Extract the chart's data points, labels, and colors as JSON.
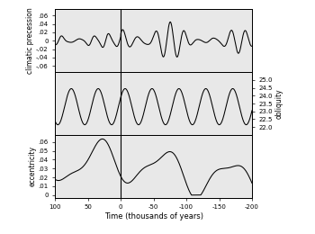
{
  "xlabel": "Time (thousands of years)",
  "panel1_ylabel": "climatic precession",
  "panel2_ylabel_right": "obliquity",
  "panel3_ylabel": "eccentricity",
  "panel1_ytick_labels": [
    ".06",
    ".04",
    ".02",
    "0",
    "-.02",
    "-.04",
    "-.06"
  ],
  "panel1_yticks": [
    0.06,
    0.04,
    0.02,
    0.0,
    -0.02,
    -0.04,
    -0.06
  ],
  "panel1_ylim": [
    -0.075,
    0.075
  ],
  "panel2_yticks": [
    22.0,
    22.5,
    23.0,
    23.5,
    24.0,
    24.5,
    25.0
  ],
  "panel2_ylim": [
    21.5,
    25.5
  ],
  "panel3_yticks": [
    0.0,
    0.01,
    0.02,
    0.03,
    0.04,
    0.05,
    0.06
  ],
  "panel3_ytick_labels": [
    "0",
    ".01",
    ".02",
    ".03",
    ".04",
    ".05",
    ".06"
  ],
  "panel3_ylim": [
    -0.003,
    0.068
  ],
  "xticks": [
    100,
    50,
    0,
    -50,
    -100,
    -150,
    -200
  ],
  "background_color": "#e8e8e8",
  "line_color": "#000000",
  "vline_x": 0
}
